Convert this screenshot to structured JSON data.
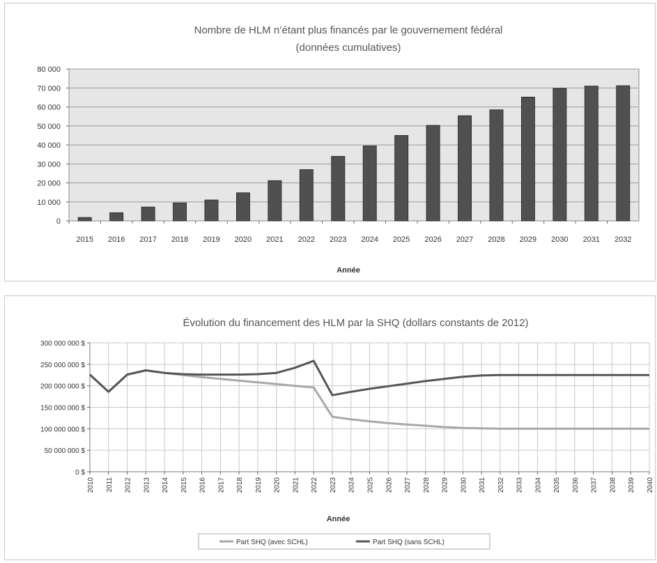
{
  "chart_data": [
    {
      "type": "bar",
      "title": "Nombre de HLM n’étant plus financés par le gouvernement fédéral",
      "subtitle": "(données cumulatives)",
      "xlabel": "Année",
      "ylabel": "",
      "ylim": [
        0,
        80000
      ],
      "yticks": [
        0,
        10000,
        20000,
        30000,
        40000,
        50000,
        60000,
        70000,
        80000
      ],
      "ytick_labels": [
        "0",
        "10 000",
        "20 000",
        "30 000",
        "40 000",
        "50 000",
        "60 000",
        "70 000",
        "80 000"
      ],
      "categories": [
        "2015",
        "2016",
        "2017",
        "2018",
        "2019",
        "2020",
        "2021",
        "2022",
        "2023",
        "2024",
        "2025",
        "2026",
        "2027",
        "2028",
        "2029",
        "2030",
        "2031",
        "2032"
      ],
      "values": [
        1800,
        4300,
        7300,
        9500,
        11000,
        14800,
        21200,
        27000,
        34000,
        39500,
        45000,
        50300,
        55400,
        58500,
        65200,
        69800,
        71000,
        71200
      ],
      "grid": true,
      "colors": {
        "bar": "#505050",
        "plot_bg": "#e6e6e6",
        "grid": "#9a9a9a"
      }
    },
    {
      "type": "line",
      "title": "Évolution du financement des HLM par la SHQ (dollars constants de 2012)",
      "xlabel": "Année",
      "ylabel": "",
      "ylim": [
        0,
        300000000
      ],
      "yticks": [
        0,
        50000000,
        100000000,
        150000000,
        200000000,
        250000000,
        300000000
      ],
      "ytick_labels": [
        "0 $",
        "50 000 000 $",
        "100 000 000 $",
        "150 000 000 $",
        "200 000 000 $",
        "250 000 000 $",
        "300 000 000 $"
      ],
      "x": [
        "2010",
        "2011",
        "2012",
        "2013",
        "2014",
        "2015",
        "2016",
        "2017",
        "2018",
        "2019",
        "2020",
        "2021",
        "2022",
        "2023",
        "2024",
        "2025",
        "2026",
        "2027",
        "2028",
        "2029",
        "2030",
        "2031",
        "2032",
        "2033",
        "2034",
        "2035",
        "2036",
        "2037",
        "2038",
        "2039",
        "2040"
      ],
      "series": [
        {
          "name": "Part SHQ (avec SCHL)",
          "color": "#a8a8a8",
          "values": [
            226000000,
            186000000,
            226000000,
            236000000,
            230000000,
            225000000,
            220000000,
            216000000,
            212000000,
            208000000,
            204000000,
            200000000,
            196000000,
            128000000,
            122000000,
            117000000,
            113000000,
            110000000,
            107000000,
            104000000,
            102000000,
            101000000,
            100000000,
            100000000,
            100000000,
            100000000,
            100000000,
            100000000,
            100000000,
            100000000,
            100000000
          ]
        },
        {
          "name": "Part SHQ (sans SCHL)",
          "color": "#555555",
          "values": [
            226000000,
            186000000,
            226000000,
            236000000,
            230000000,
            227000000,
            226000000,
            226000000,
            226000000,
            227000000,
            230000000,
            242000000,
            258000000,
            178000000,
            186000000,
            193000000,
            199000000,
            205000000,
            211000000,
            216000000,
            221000000,
            224000000,
            225000000,
            225000000,
            225000000,
            225000000,
            225000000,
            225000000,
            225000000,
            225000000,
            225000000
          ]
        }
      ],
      "legend_position": "bottom",
      "grid": true,
      "colors": {
        "grid": "#c8c8c8",
        "axis": "#777777"
      }
    }
  ]
}
